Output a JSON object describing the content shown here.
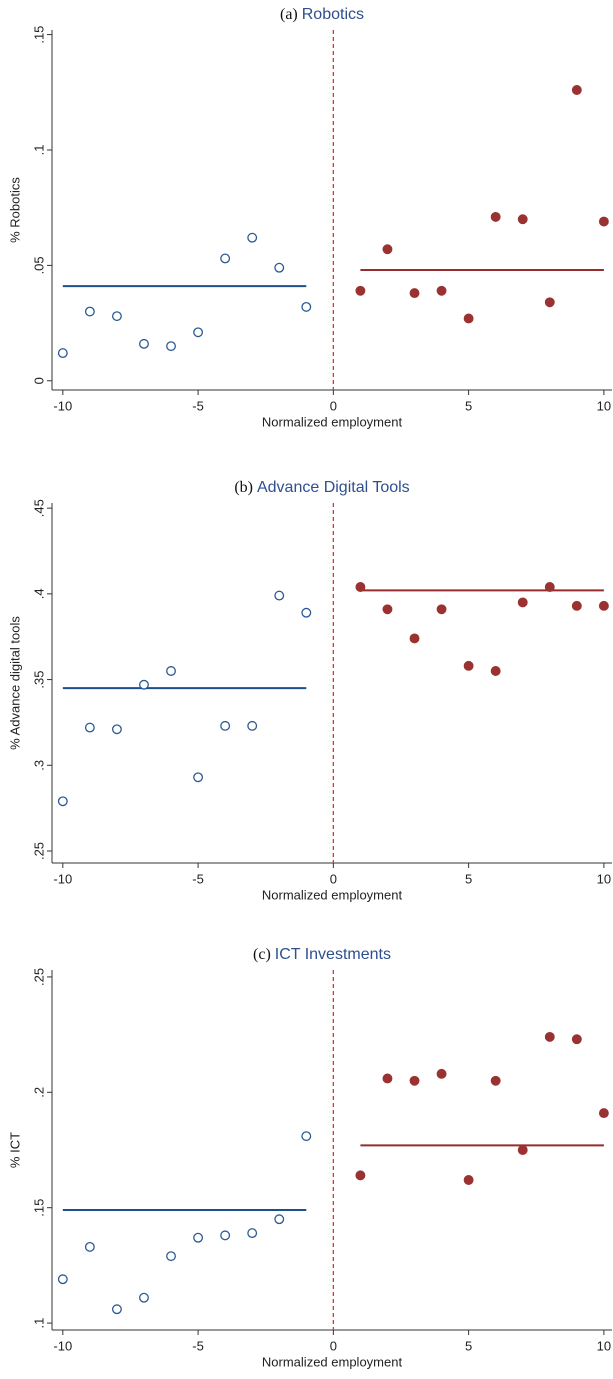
{
  "chart_data": [
    {
      "type": "scatter",
      "panel_label": "(a)",
      "title": "Robotics",
      "xlabel": "Normalized employment",
      "ylabel": "% Robotics",
      "xlim": [
        -10.4,
        10.3
      ],
      "xticks": [
        -10,
        -5,
        0,
        5,
        10
      ],
      "ylim": [
        -0.004,
        0.152
      ],
      "yticks": [
        0,
        {
          "value": 0.05,
          "label": ".05"
        },
        {
          "value": 0.1,
          "label": ".1"
        },
        {
          "value": 0.15,
          "label": ".15"
        }
      ],
      "cutoff": 0,
      "cutoff_color": "#e0303a",
      "series": [
        {
          "color": "#2b5a94",
          "filled": false,
          "x": [
            -10,
            -9,
            -8,
            -7,
            -6,
            -5,
            -4,
            -3,
            -2,
            -1
          ],
          "values": [
            0.012,
            0.03,
            0.028,
            0.016,
            0.015,
            0.021,
            0.053,
            0.062,
            0.049,
            0.032
          ]
        },
        {
          "color": "#9a3232",
          "filled": true,
          "x": [
            1,
            2,
            3,
            4,
            5,
            6,
            7,
            8,
            9,
            10
          ],
          "values": [
            0.039,
            0.057,
            0.038,
            0.039,
            0.027,
            0.071,
            0.07,
            0.034,
            0.126,
            0.069
          ]
        }
      ],
      "fits": [
        {
          "color": "#1f4e8c",
          "x": [
            -10,
            -1
          ],
          "value": 0.041
        },
        {
          "color": "#962c2c",
          "x": [
            1,
            10
          ],
          "value": 0.048
        }
      ]
    },
    {
      "type": "scatter",
      "panel_label": "(b)",
      "title": "Advance Digital Tools",
      "xlabel": "Normalized employment",
      "ylabel": "% Advance digital tools",
      "xlim": [
        -10.4,
        10.3
      ],
      "xticks": [
        -10,
        -5,
        0,
        5,
        10
      ],
      "ylim": [
        0.243,
        0.453
      ],
      "yticks": [
        {
          "value": 0.25,
          "label": ".25"
        },
        {
          "value": 0.3,
          "label": ".3"
        },
        {
          "value": 0.35,
          "label": ".35"
        },
        {
          "value": 0.4,
          "label": ".4"
        },
        {
          "value": 0.45,
          "label": ".45"
        }
      ],
      "cutoff": 0,
      "cutoff_color": "#e0303a",
      "series": [
        {
          "color": "#2b5a94",
          "filled": false,
          "x": [
            -10,
            -9,
            -8,
            -7,
            -6,
            -5,
            -4,
            -3,
            -2,
            -1
          ],
          "values": [
            0.279,
            0.322,
            0.321,
            0.347,
            0.355,
            0.293,
            0.323,
            0.323,
            0.399,
            0.389
          ]
        },
        {
          "color": "#9a3232",
          "filled": true,
          "x": [
            1,
            2,
            3,
            4,
            5,
            6,
            7,
            8,
            9,
            10
          ],
          "values": [
            0.404,
            0.391,
            0.374,
            0.391,
            0.358,
            0.355,
            0.395,
            0.404,
            0.393,
            0.393
          ]
        }
      ],
      "fits": [
        {
          "color": "#1f4e8c",
          "x": [
            -10,
            -1
          ],
          "value": 0.345
        },
        {
          "color": "#962c2c",
          "x": [
            1,
            10
          ],
          "value": 0.402
        }
      ]
    },
    {
      "type": "scatter",
      "panel_label": "(c)",
      "title": "ICT Investments",
      "xlabel": "Normalized employment",
      "ylabel": "% ICT",
      "xlim": [
        -10.4,
        10.3
      ],
      "xticks": [
        -10,
        -5,
        0,
        5,
        10
      ],
      "ylim": [
        0.097,
        0.253
      ],
      "yticks": [
        {
          "value": 0.1,
          "label": ".1"
        },
        {
          "value": 0.15,
          "label": ".15"
        },
        {
          "value": 0.2,
          "label": ".2"
        },
        {
          "value": 0.25,
          "label": ".25"
        }
      ],
      "cutoff": 0,
      "cutoff_color": "#e0303a",
      "series": [
        {
          "color": "#2b5a94",
          "filled": false,
          "x": [
            -10,
            -9,
            -8,
            -7,
            -6,
            -5,
            -4,
            -3,
            -2,
            -1
          ],
          "values": [
            0.119,
            0.133,
            0.106,
            0.111,
            0.129,
            0.137,
            0.138,
            0.139,
            0.145,
            0.181
          ]
        },
        {
          "color": "#9a3232",
          "filled": true,
          "x": [
            1,
            2,
            3,
            4,
            5,
            6,
            7,
            8,
            9,
            10
          ],
          "values": [
            0.164,
            0.206,
            0.205,
            0.208,
            0.162,
            0.205,
            0.175,
            0.224,
            0.223,
            0.191
          ]
        }
      ],
      "fits": [
        {
          "color": "#1f4e8c",
          "x": [
            -10,
            -1
          ],
          "value": 0.149
        },
        {
          "color": "#962c2c",
          "x": [
            1,
            10
          ],
          "value": 0.177
        }
      ]
    }
  ]
}
